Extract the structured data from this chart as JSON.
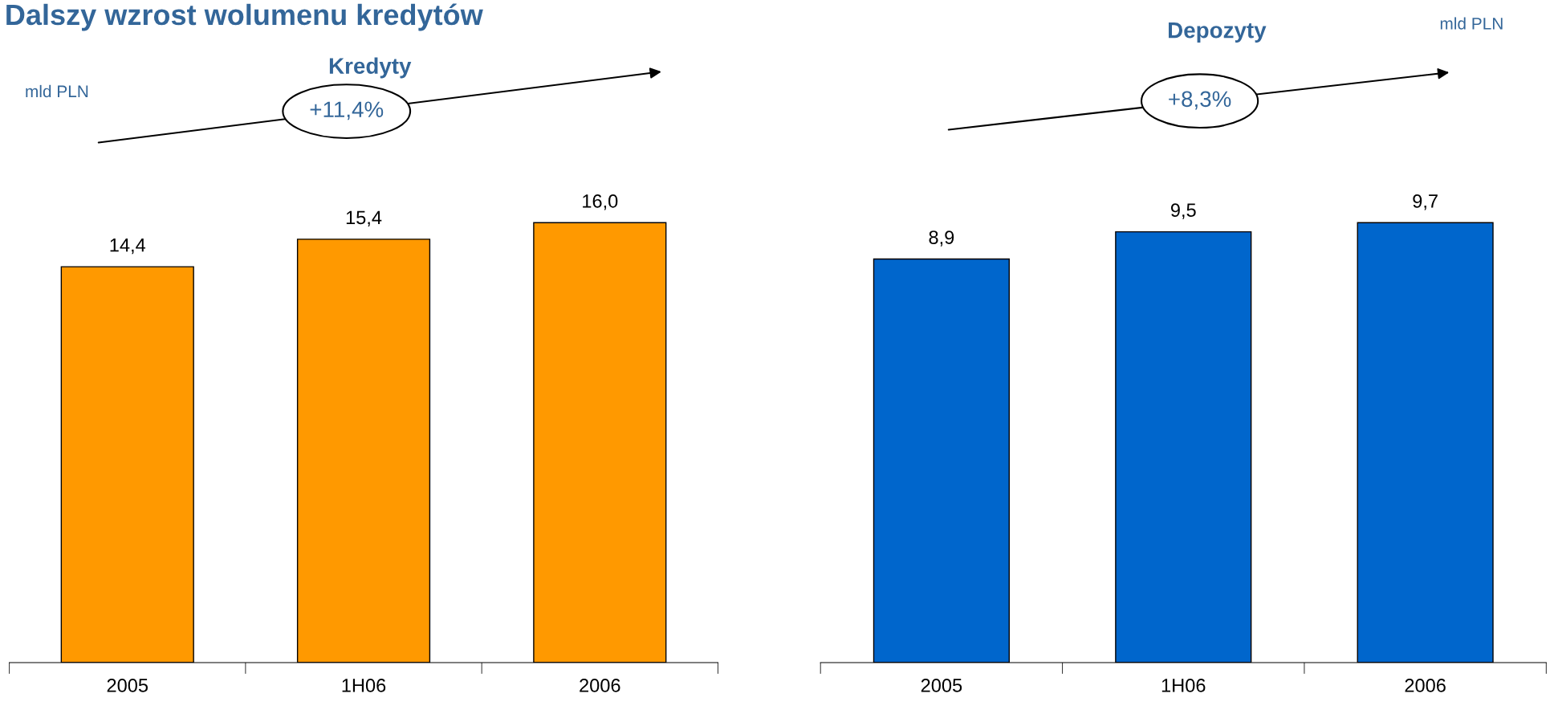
{
  "chart_data": [
    {
      "type": "bar",
      "title": "Dalszy wzrost wolumenu kredytów",
      "subtitle": "Kredyty",
      "categories": [
        "2005",
        "1H06",
        "2006"
      ],
      "values": [
        14.4,
        15.4,
        16.0
      ],
      "color": "#ff9900",
      "data_labels": true,
      "value_labels": [
        "14,4",
        "15,4",
        "16,0"
      ],
      "grid": false,
      "legend": false,
      "annotations": [
        "mld PLN",
        "+11,4%"
      ]
    },
    {
      "type": "bar",
      "subtitle": "Depozyty",
      "categories": [
        "2005",
        "1H06",
        "2006"
      ],
      "values": [
        8.9,
        9.5,
        9.7
      ],
      "color": "#0066cc",
      "data_labels": true,
      "value_labels": [
        "8,9",
        "9,5",
        "9,7"
      ],
      "grid": false,
      "legend": false,
      "annotations": [
        "mld PLN",
        "+8,3%"
      ]
    }
  ]
}
